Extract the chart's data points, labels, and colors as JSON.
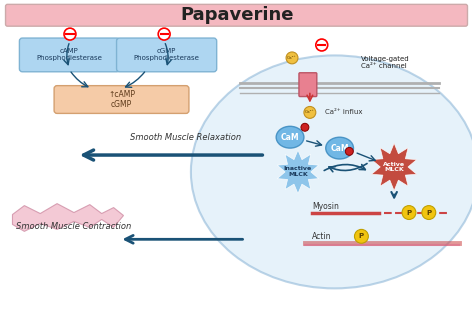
{
  "title": "Papaverine",
  "title_bg": "#f4b8c0",
  "bg_color": "#ffffff",
  "cell_bg": "#d6eaf8",
  "camp_box_color": "#aed6f1",
  "cgmp_box_color": "#aed6f1",
  "increase_box_color": "#f5cba7",
  "camp_label": "cAMP\nPhosphodiesterase",
  "cgmp_label": "cGMP\nPhosphodiesterase",
  "increase_label": "↑cAMP\ncGMP",
  "smooth_relax": "Smooth Muscle Relaxation",
  "smooth_contract": "Smooth Muscle Contraction",
  "voltage_label": "Voltage-gated\nCa²⁺ channel",
  "ca_influx": "Ca²⁺ influx",
  "inactive_mlck": "Inactive\nMLCK",
  "active_mlck": "Active\nMLCK",
  "cam_label": "CaM",
  "myosin_label": "Myosin",
  "actin_label": "Actin",
  "arrow_color": "#1a5276",
  "inactive_mlck_color": "#85c1e9",
  "active_mlck_color": "#c0392b",
  "cam_color": "#5dade2",
  "p_label": "P",
  "p_color": "#f1c40f",
  "membrane_color": "#b0b0b0"
}
